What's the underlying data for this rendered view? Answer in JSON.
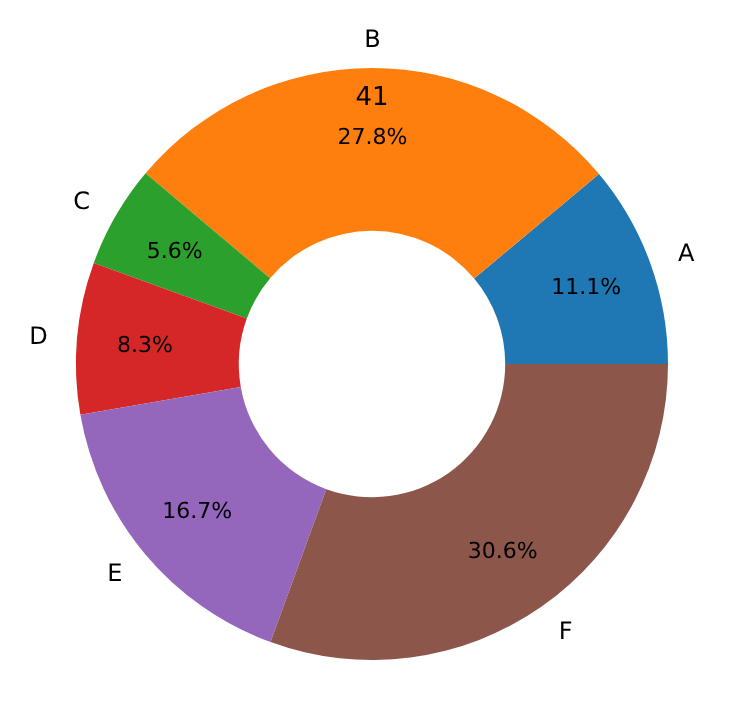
{
  "chart_data": {
    "type": "donut",
    "categories": [
      "A",
      "B",
      "C",
      "D",
      "E",
      "F"
    ],
    "values": [
      11.1,
      27.8,
      5.6,
      8.3,
      16.7,
      30.6
    ],
    "value_labels": [
      "11.1%",
      "27.8%",
      "5.6%",
      "8.3%",
      "16.7%",
      "30.6%"
    ],
    "colors": [
      "#1f77b4",
      "#ff7f0e",
      "#2ca02c",
      "#d62728",
      "#9467bd",
      "#8c564b"
    ],
    "annotations": [
      "41"
    ],
    "legend": false
  }
}
